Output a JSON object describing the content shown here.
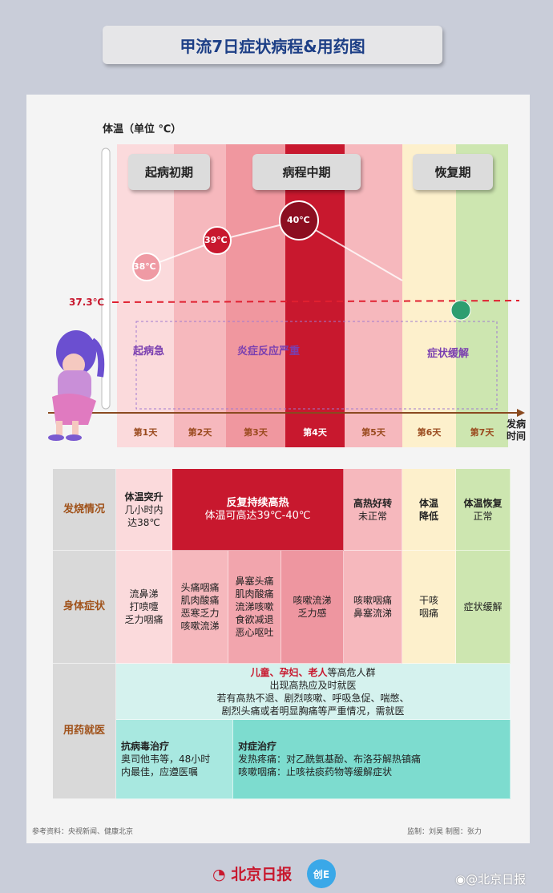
{
  "title": "甲流7日症状病程&用药图",
  "chart": {
    "ylabel": "体温（单位 ℃）",
    "threshold_label": "37.3℃",
    "xlabel": "发病\n时间",
    "phases": [
      "起病初期",
      "病程中期",
      "恢复期"
    ],
    "days": [
      "第1天",
      "第2天",
      "第3天",
      "第4天",
      "第5天",
      "第6天",
      "第7天"
    ],
    "day_colors": [
      "#fbdadc",
      "#f6b8bd",
      "#f0979f",
      "#c8182e",
      "#f6b8bd",
      "#fdf0cc",
      "#cde6b0"
    ],
    "temps": [
      {
        "label": "38℃",
        "day": 1,
        "value": 38
      },
      {
        "label": "39℃",
        "day": 2,
        "value": 39
      },
      {
        "label": "40℃",
        "day": 4,
        "value": 40
      }
    ],
    "stages": [
      "起病急",
      "炎症反应严重",
      "症状缓解"
    ]
  },
  "table": {
    "rows": [
      "发烧情况",
      "身体症状",
      "用药就医"
    ],
    "fever": [
      {
        "title": "体温突升",
        "text": "几小时内\n达38℃"
      },
      {
        "title": "反复持续高热",
        "text": "体温可高达39℃-40℃"
      },
      {
        "title": "高热好转",
        "text": "未正常"
      },
      {
        "title": "体温\n降低",
        "text": ""
      },
      {
        "title": "体温恢复",
        "text": "正常"
      }
    ],
    "symptoms": [
      "流鼻涕\n打喷嚏\n乏力咽痛",
      "头痛咽痛\n肌肉酸痛\n恶寒乏力\n咳嗽流涕",
      "鼻塞头痛\n肌肉酸痛\n流涕咳嗽\n食欲减退\n恶心呕吐",
      "咳嗽流涕\n乏力感",
      "咳嗽咽痛\n鼻塞流涕",
      "干咳\n咽痛",
      "症状缓解"
    ],
    "care": {
      "highrisk_red": "儿童、孕妇、老人",
      "highrisk_rest": "等高危人群",
      "lines": [
        "出现高热应及时就医",
        "若有高热不退、剧烈咳嗽、呼吸急促、喘憋、",
        "剧烈头痛或者明显胸痛等严重情况，需就医"
      ],
      "antiviral_title": "抗病毒治疗",
      "antiviral_text": "奥司他韦等，48小时\n内最佳，应遵医嘱",
      "symptomatic_title": "对症治疗",
      "symptomatic_text": "发热疼痛：对乙酰氨基酚、布洛芬解热镇痛\n咳嗽咽痛：止咳祛痰药物等缓解症状"
    }
  },
  "footer": {
    "source": "参考资料：央视新闻、健康北京",
    "credits": "监制：刘昊 制图：张力"
  },
  "logos": {
    "paper": "北京日报",
    "app": "创E",
    "weibo": "@北京日报"
  }
}
